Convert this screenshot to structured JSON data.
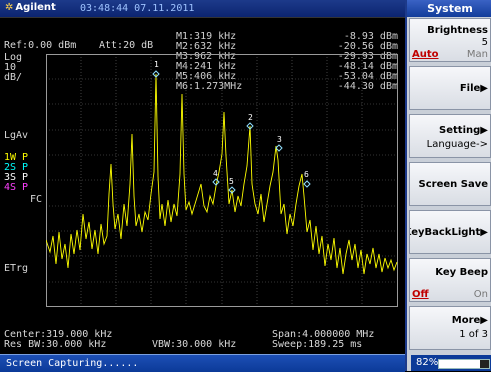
{
  "header": {
    "brand": "Agilent",
    "datetime": "03:48:44 07.11.2011"
  },
  "screen": {
    "ref": "Ref:0.00 dBm",
    "att": "Att:20 dB",
    "scale_lines": [
      "Log",
      "10",
      "dB/"
    ],
    "lgav": "LgAv",
    "traces": [
      {
        "label": "1W P",
        "color": "#ffff00"
      },
      {
        "label": "2S P",
        "color": "#00ffff"
      },
      {
        "label": "3S P",
        "color": "#ffffff"
      },
      {
        "label": "4S P",
        "color": "#ff40ff"
      }
    ],
    "fc": "FC",
    "etrg": "ETrg",
    "markers": [
      {
        "name": "M1:319 kHz",
        "value": "-8.93 dBm"
      },
      {
        "name": "M2:632 kHz",
        "value": "-20.56 dBm"
      },
      {
        "name": "M3:962 kHz",
        "value": "-29.93 dBm"
      },
      {
        "name": "M4:241 kHz",
        "value": "-48.14 dBm"
      },
      {
        "name": "M5:406 kHz",
        "value": "-53.04 dBm"
      },
      {
        "name": "M6:1.273MHz",
        "value": "-44.30 dBm"
      }
    ],
    "marker_tags": [
      "1",
      "2",
      "3",
      "4",
      "5",
      "6"
    ],
    "center": "Center:319.000 kHz",
    "span": "Span:4.000000 MHz",
    "rbw": "Res BW:30.000 kHz",
    "vbw": "VBW:30.000 kHz",
    "sweep": "Sweep:189.25 ms"
  },
  "status": "Screen Capturing......",
  "panel": {
    "title": "System",
    "softkeys": [
      {
        "line1": "Brightness",
        "line2": "5",
        "opt_active": "Auto",
        "opt_other": "Man"
      },
      {
        "line1": "File▶",
        "line2": ""
      },
      {
        "line1": "Setting▶",
        "line2": "Language->"
      },
      {
        "line1": "Screen Save",
        "line2": ""
      },
      {
        "line1": "KeyBackLight▶",
        "line2": ""
      },
      {
        "line1": "Key Beep",
        "line2": "",
        "opt_active": "Off",
        "opt_other": "On"
      },
      {
        "line1": "More▶",
        "line2": "1 of 3"
      }
    ]
  },
  "battery": {
    "percent_label": "82%",
    "level": 0.82
  }
}
